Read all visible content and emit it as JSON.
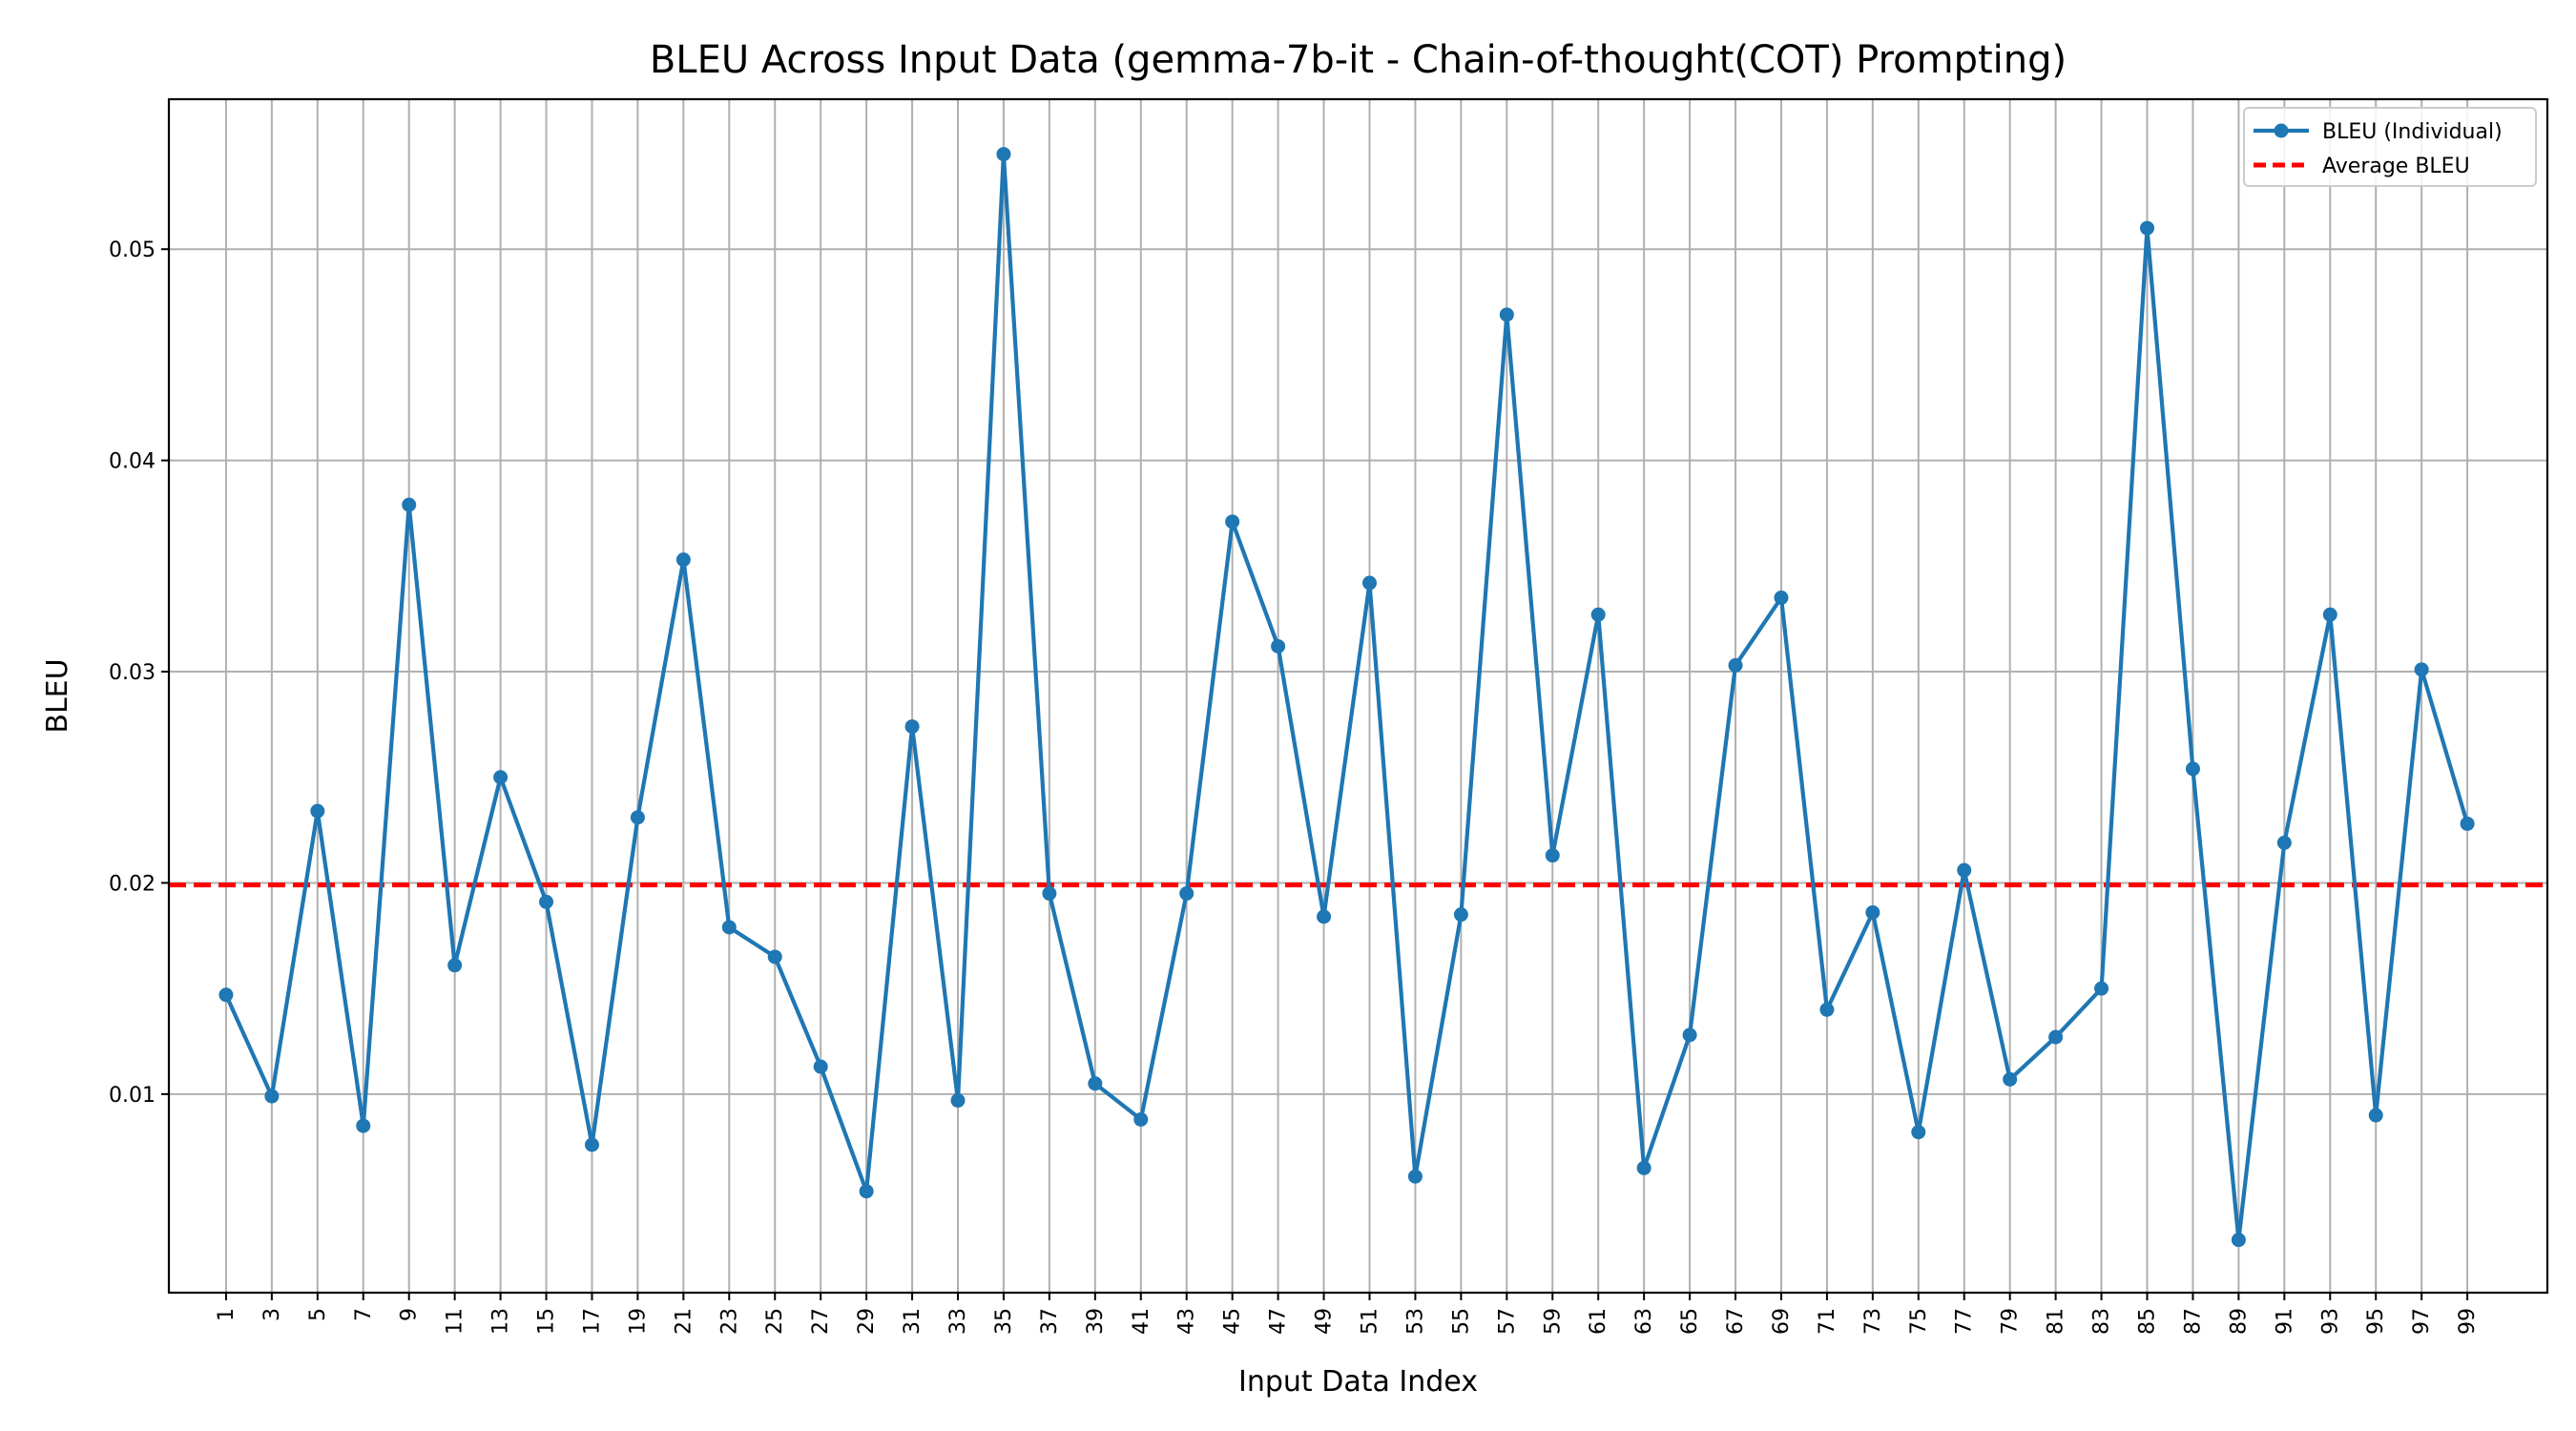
{
  "chart_data": {
    "type": "line",
    "title": "BLEU Across Input Data (gemma-7b-it - Chain-of-thought(COT) Prompting)",
    "xlabel": "Input Data Index",
    "ylabel": "BLEU",
    "x": [
      1,
      3,
      5,
      7,
      9,
      11,
      13,
      15,
      17,
      19,
      21,
      23,
      25,
      27,
      29,
      31,
      33,
      35,
      37,
      39,
      41,
      43,
      45,
      47,
      49,
      51,
      53,
      55,
      57,
      59,
      61,
      63,
      65,
      67,
      69,
      71,
      73,
      75,
      77,
      79,
      81,
      83,
      85,
      87,
      89,
      91,
      93,
      95,
      97,
      99
    ],
    "x_tick_labels": [
      "1",
      "3",
      "5",
      "7",
      "9",
      "11",
      "13",
      "15",
      "17",
      "19",
      "21",
      "23",
      "25",
      "27",
      "29",
      "31",
      "33",
      "35",
      "37",
      "39",
      "41",
      "43",
      "45",
      "47",
      "49",
      "51",
      "53",
      "55",
      "57",
      "59",
      "61",
      "63",
      "65",
      "67",
      "69",
      "71",
      "73",
      "75",
      "77",
      "79",
      "81",
      "83",
      "85",
      "87",
      "89",
      "91",
      "93",
      "95",
      "97",
      "99"
    ],
    "y_ticks": [
      0.01,
      0.02,
      0.03,
      0.04,
      0.05
    ],
    "y_tick_labels": [
      "0.01",
      "0.02",
      "0.03",
      "0.04",
      "0.05"
    ],
    "xlim": [
      -1.5,
      102.5
    ],
    "ylim": [
      0.0006,
      0.0571
    ],
    "grid": true,
    "legend_position": "top-right",
    "series": [
      {
        "name": "BLEU (Individual)",
        "color": "#1f77b4",
        "style": "solid-with-markers",
        "values": [
          0.0147,
          0.0099,
          0.0234,
          0.0085,
          0.0379,
          0.0161,
          0.025,
          0.0191,
          0.0076,
          0.0231,
          0.0353,
          0.0179,
          0.0165,
          0.0113,
          0.0054,
          0.0274,
          0.0097,
          0.0545,
          0.0195,
          0.0105,
          0.0088,
          0.0195,
          0.0371,
          0.0312,
          0.0184,
          0.0342,
          0.0061,
          0.0185,
          0.0469,
          0.0213,
          0.0327,
          0.0065,
          0.0128,
          0.0303,
          0.0335,
          0.014,
          0.0186,
          0.0082,
          0.0206,
          0.0107,
          0.0127,
          0.015,
          0.051,
          0.0254,
          0.0031,
          0.0219,
          0.0327,
          0.009,
          0.0301,
          0.0228
        ]
      },
      {
        "name": "Average BLEU",
        "color": "#ff0000",
        "style": "dashed",
        "value": 0.0199
      }
    ]
  }
}
